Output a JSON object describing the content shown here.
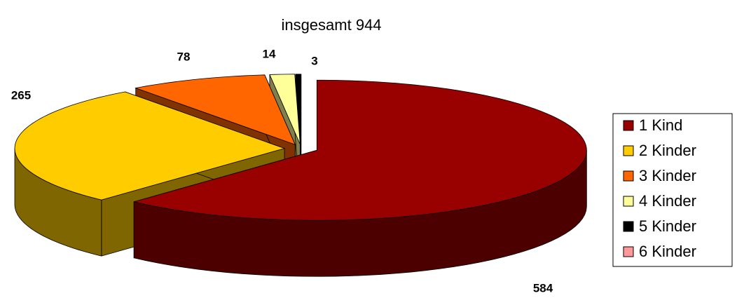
{
  "chart_data": {
    "type": "pie3d",
    "title": "insgesamt 944",
    "categories": [
      "1 Kind",
      "2 Kinder",
      "3 Kinder",
      "4 Kinder",
      "5 Kinder",
      "6 Kinder"
    ],
    "values": [
      584,
      265,
      78,
      14,
      3,
      0
    ],
    "colors": [
      "#990000",
      "#ffcc00",
      "#ff6600",
      "#ffff99",
      "#000000",
      "#ff9999"
    ],
    "legend": "right"
  }
}
